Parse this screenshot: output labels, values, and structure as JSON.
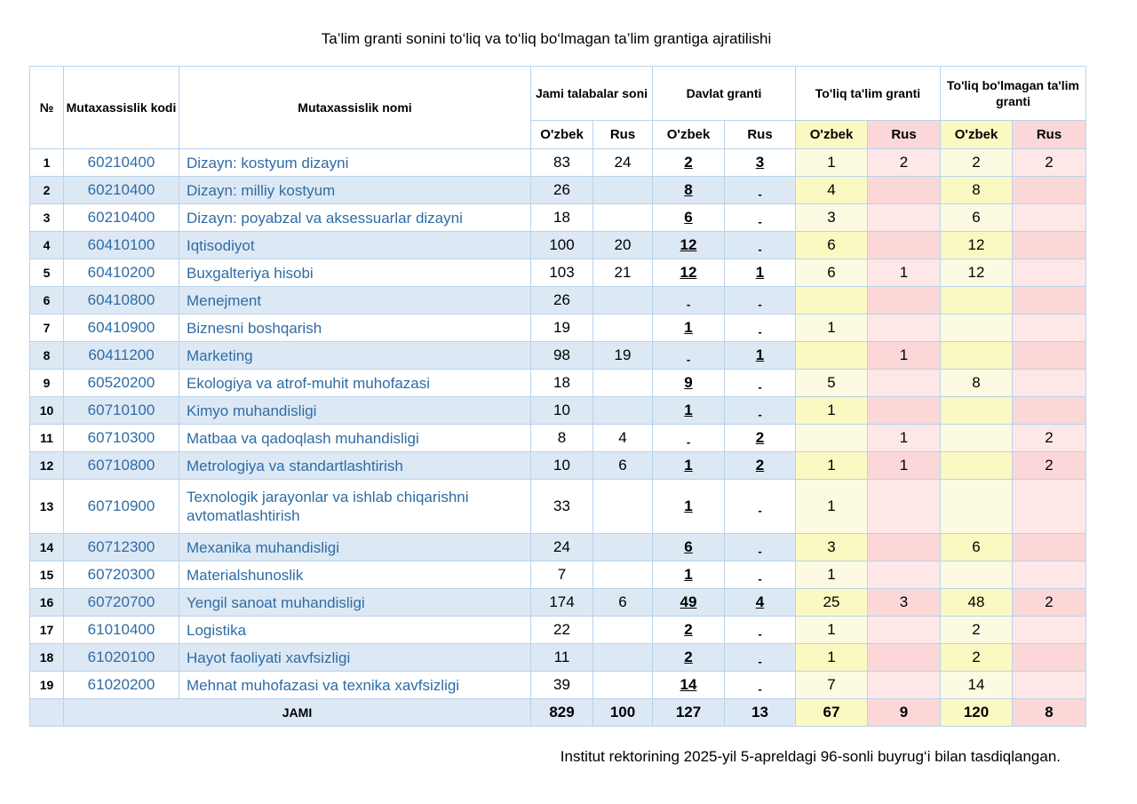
{
  "title": "Ta’lim granti sonini to‘liq va to‘liq bo‘lmagan ta’lim grantiga ajratilishi",
  "headers": {
    "no": "№",
    "code": "Mutaxassislik kodi",
    "name": "Mutaxassislik nomi",
    "total_students": "Jami talabalar soni",
    "state_grant": "Davlat granti",
    "full_grant": "To'liq ta'lim granti",
    "partial_grant": "To'liq bo'lmagan ta'lim granti",
    "uz": "O'zbek",
    "ru": "Rus"
  },
  "rows": [
    {
      "no": "1",
      "code": "60210400",
      "name": "Dizayn: kostyum dizayni",
      "tot_uz": "83",
      "tot_ru": "24",
      "dg_uz": "2",
      "dg_ru": "3",
      "full_uz": "1",
      "full_ru": "2",
      "part_uz": "2",
      "part_ru": "2"
    },
    {
      "no": "2",
      "code": "60210400",
      "name": "Dizayn: milliy kostyum",
      "tot_uz": "26",
      "tot_ru": "",
      "dg_uz": "8",
      "dg_ru": "-",
      "full_uz": "4",
      "full_ru": "",
      "part_uz": "8",
      "part_ru": ""
    },
    {
      "no": "3",
      "code": "60210400",
      "name": "Dizayn: poyabzal va aksessuarlar dizayni",
      "tot_uz": "18",
      "tot_ru": "",
      "dg_uz": "6",
      "dg_ru": "-",
      "full_uz": "3",
      "full_ru": "",
      "part_uz": "6",
      "part_ru": ""
    },
    {
      "no": "4",
      "code": "60410100",
      "name": "Iqtisodiyot",
      "tot_uz": "100",
      "tot_ru": "20",
      "dg_uz": "12",
      "dg_ru": "-",
      "full_uz": "6",
      "full_ru": "",
      "part_uz": "12",
      "part_ru": ""
    },
    {
      "no": "5",
      "code": "60410200",
      "name": "Buxgalteriya hisobi",
      "tot_uz": "103",
      "tot_ru": "21",
      "dg_uz": "12",
      "dg_ru": "1",
      "full_uz": "6",
      "full_ru": "1",
      "part_uz": "12",
      "part_ru": ""
    },
    {
      "no": "6",
      "code": "60410800",
      "name": "Menejment",
      "tot_uz": "26",
      "tot_ru": "",
      "dg_uz": "-",
      "dg_ru": "-",
      "full_uz": "",
      "full_ru": "",
      "part_uz": "",
      "part_ru": ""
    },
    {
      "no": "7",
      "code": "60410900",
      "name": "Biznesni boshqarish",
      "tot_uz": "19",
      "tot_ru": "",
      "dg_uz": "1",
      "dg_ru": "-",
      "full_uz": "1",
      "full_ru": "",
      "part_uz": "",
      "part_ru": ""
    },
    {
      "no": "8",
      "code": "60411200",
      "name": "Marketing",
      "tot_uz": "98",
      "tot_ru": "19",
      "dg_uz": "-",
      "dg_ru": "1",
      "full_uz": "",
      "full_ru": "1",
      "part_uz": "",
      "part_ru": ""
    },
    {
      "no": "9",
      "code": "60520200",
      "name": "Ekologiya va atrof-muhit muhofazasi",
      "tot_uz": "18",
      "tot_ru": "",
      "dg_uz": "9",
      "dg_ru": "-",
      "full_uz": "5",
      "full_ru": "",
      "part_uz": "8",
      "part_ru": ""
    },
    {
      "no": "10",
      "code": "60710100",
      "name": "Kimyo muhandisligi",
      "tot_uz": "10",
      "tot_ru": "",
      "dg_uz": "1",
      "dg_ru": "-",
      "full_uz": "1",
      "full_ru": "",
      "part_uz": "",
      "part_ru": ""
    },
    {
      "no": "11",
      "code": "60710300",
      "name": "Matbaa va qadoqlash muhandisligi",
      "tot_uz": "8",
      "tot_ru": "4",
      "dg_uz": "-",
      "dg_ru": "2",
      "full_uz": "",
      "full_ru": "1",
      "part_uz": "",
      "part_ru": "2"
    },
    {
      "no": "12",
      "code": "60710800",
      "name": "Metrologiya va standartlashtirish",
      "tot_uz": "10",
      "tot_ru": "6",
      "dg_uz": "1",
      "dg_ru": "2",
      "full_uz": "1",
      "full_ru": "1",
      "part_uz": "",
      "part_ru": "2"
    },
    {
      "no": "13",
      "code": "60710900",
      "name": "Texnologik jarayonlar va ishlab chiqarishni avtomatlashtirish",
      "tot_uz": "33",
      "tot_ru": "",
      "dg_uz": "1",
      "dg_ru": "-",
      "full_uz": "1",
      "full_ru": "",
      "part_uz": "",
      "part_ru": ""
    },
    {
      "no": "14",
      "code": "60712300",
      "name": "Mexanika muhandisligi",
      "tot_uz": "24",
      "tot_ru": "",
      "dg_uz": "6",
      "dg_ru": "-",
      "full_uz": "3",
      "full_ru": "",
      "part_uz": "6",
      "part_ru": ""
    },
    {
      "no": "15",
      "code": "60720300",
      "name": "Materialshunoslik",
      "tot_uz": "7",
      "tot_ru": "",
      "dg_uz": "1",
      "dg_ru": "-",
      "full_uz": "1",
      "full_ru": "",
      "part_uz": "",
      "part_ru": ""
    },
    {
      "no": "16",
      "code": "60720700",
      "name": "Yengil sanoat muhandisligi",
      "tot_uz": "174",
      "tot_ru": "6",
      "dg_uz": "49",
      "dg_ru": "4",
      "full_uz": "25",
      "full_ru": "3",
      "part_uz": "48",
      "part_ru": "2"
    },
    {
      "no": "17",
      "code": "61010400",
      "name": "Logistika",
      "tot_uz": "22",
      "tot_ru": "",
      "dg_uz": "2",
      "dg_ru": "-",
      "full_uz": "1",
      "full_ru": "",
      "part_uz": "2",
      "part_ru": ""
    },
    {
      "no": "18",
      "code": "61020100",
      "name": "Hayot faoliyati xavfsizligi",
      "tot_uz": "11",
      "tot_ru": "",
      "dg_uz": "2",
      "dg_ru": "-",
      "full_uz": "1",
      "full_ru": "",
      "part_uz": "2",
      "part_ru": ""
    },
    {
      "no": "19",
      "code": "61020200",
      "name": "Mehnat muhofazasi va texnika xavfsizligi",
      "tot_uz": "39",
      "tot_ru": "",
      "dg_uz": "14",
      "dg_ru": "-",
      "full_uz": "7",
      "full_ru": "",
      "part_uz": "14",
      "part_ru": ""
    }
  ],
  "total": {
    "label": "JAMI",
    "tot_uz": "829",
    "tot_ru": "100",
    "dg_uz": "127",
    "dg_ru": "13",
    "full_uz": "67",
    "full_ru": "9",
    "part_uz": "120",
    "part_ru": "8"
  },
  "footer": "Institut rektorining 2025-yil 5-apreldagi 96-sonli buyrug‘i bilan tasdiqlangan.",
  "colors": {
    "border": "#b9d3ea",
    "alt_row": "#dde8f5",
    "full_light": "#fcfbe2",
    "full_dark": "#fbf9c2",
    "partial_light": "#fde7e7",
    "partial_dark": "#fbd7d7",
    "link_text": "#2e6ca4"
  }
}
